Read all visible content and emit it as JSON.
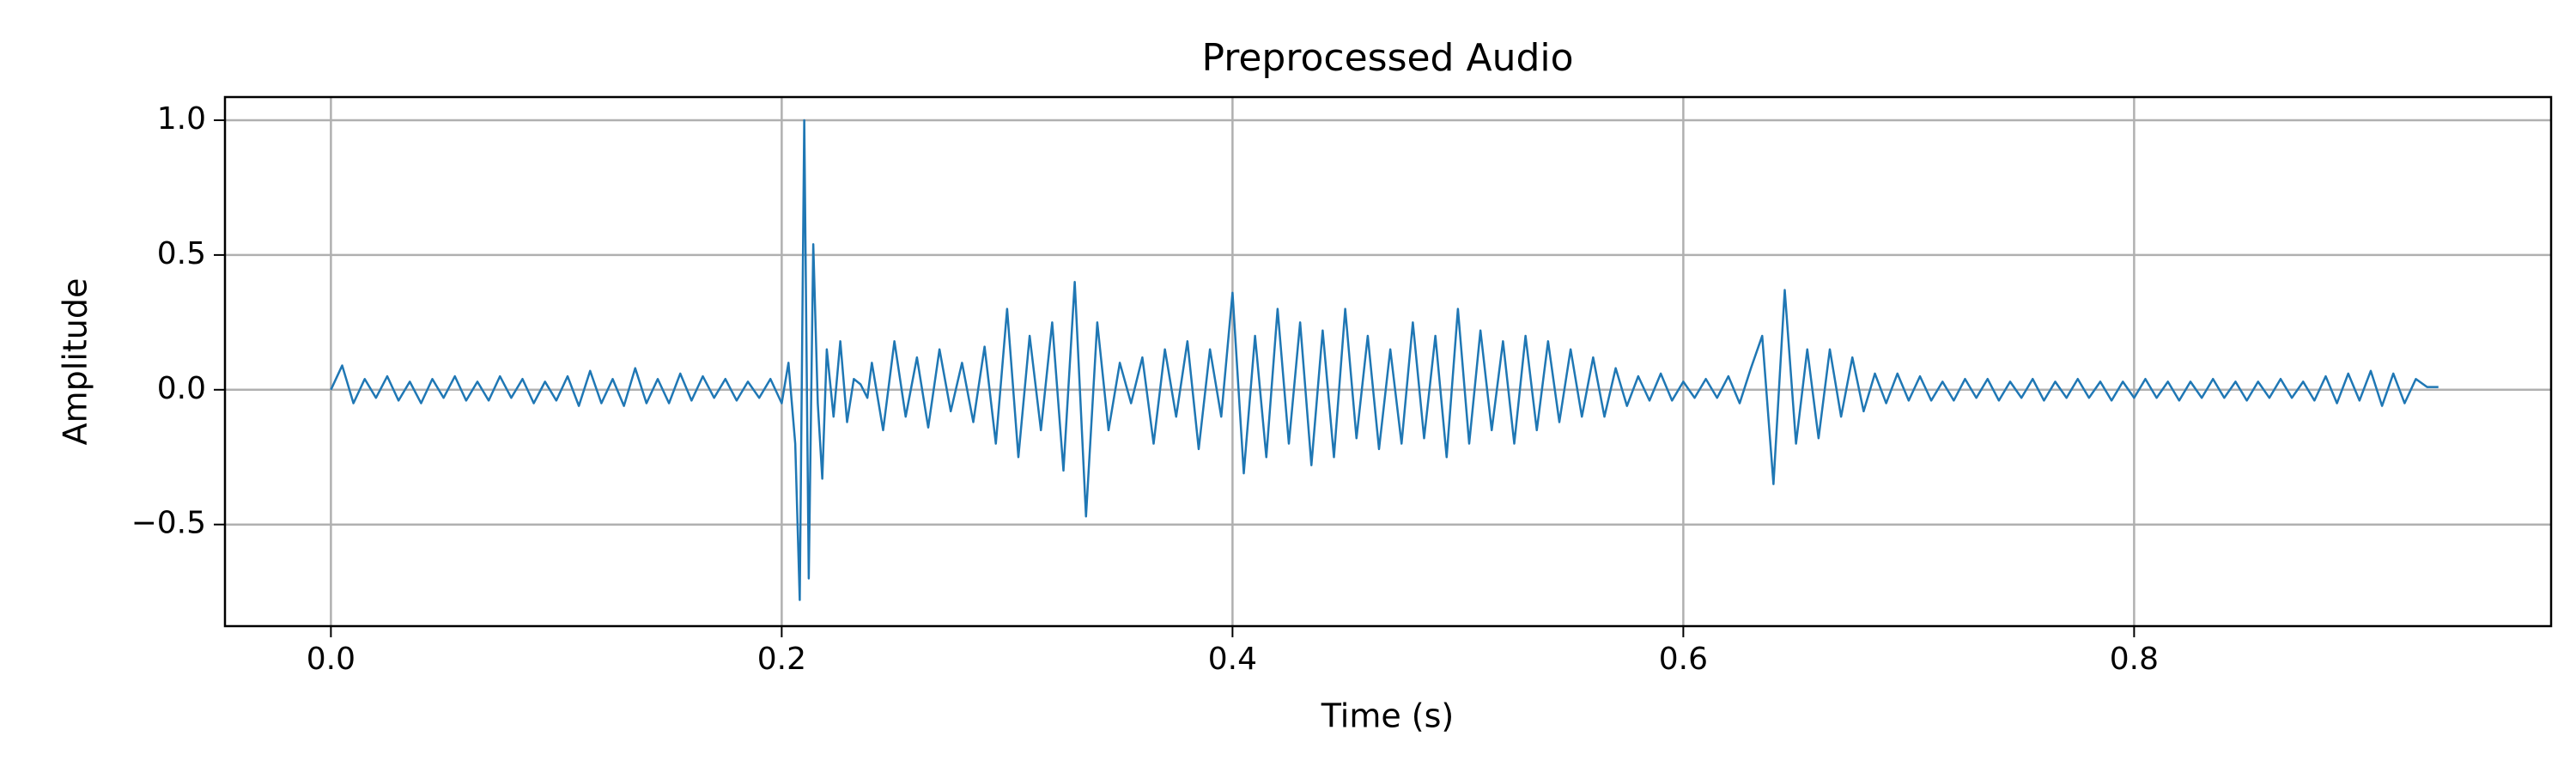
{
  "chart_data": {
    "type": "line",
    "title": "Preprocessed Audio",
    "x_label": "Time (s)",
    "y_label": "Amplitude",
    "color": "#1f77b4",
    "grid": true,
    "xlim": [
      -0.047,
      0.985
    ],
    "ylim": [
      -0.877,
      1.086
    ],
    "xticks": [
      {
        "value": 0,
        "label": "0.0"
      },
      0.2,
      0.4,
      0.6,
      0.8
    ],
    "yticks": [
      {
        "value": -0.5,
        "label": "−0.5"
      },
      {
        "value": 0,
        "label": "0.0"
      },
      0.5,
      {
        "value": 1,
        "label": "1.0"
      }
    ],
    "x": [
      0,
      0.005,
      0.01,
      0.015,
      0.02,
      0.025,
      0.03,
      0.035,
      0.04,
      0.045,
      0.05,
      0.055,
      0.06,
      0.065,
      0.07,
      0.075,
      0.08,
      0.085,
      0.09,
      0.095,
      0.1,
      0.105,
      0.11,
      0.115,
      0.12,
      0.125,
      0.13,
      0.135,
      0.14,
      0.145,
      0.15,
      0.155,
      0.16,
      0.165,
      0.17,
      0.175,
      0.18,
      0.185,
      0.19,
      0.195,
      0.2,
      0.203,
      0.206,
      0.208,
      0.21,
      0.212,
      0.214,
      0.216,
      0.218,
      0.22,
      0.223,
      0.226,
      0.229,
      0.232,
      0.235,
      0.238,
      0.24,
      0.245,
      0.25,
      0.255,
      0.26,
      0.265,
      0.27,
      0.275,
      0.28,
      0.285,
      0.29,
      0.295,
      0.3,
      0.305,
      0.31,
      0.315,
      0.32,
      0.325,
      0.33,
      0.335,
      0.34,
      0.345,
      0.35,
      0.355,
      0.36,
      0.365,
      0.37,
      0.375,
      0.38,
      0.385,
      0.39,
      0.395,
      0.4,
      0.405,
      0.41,
      0.415,
      0.42,
      0.425,
      0.43,
      0.435,
      0.44,
      0.445,
      0.45,
      0.455,
      0.46,
      0.465,
      0.47,
      0.475,
      0.48,
      0.485,
      0.49,
      0.495,
      0.5,
      0.505,
      0.51,
      0.515,
      0.52,
      0.525,
      0.53,
      0.535,
      0.54,
      0.545,
      0.55,
      0.555,
      0.56,
      0.565,
      0.57,
      0.575,
      0.58,
      0.585,
      0.59,
      0.595,
      0.6,
      0.605,
      0.61,
      0.615,
      0.62,
      0.625,
      0.63,
      0.635,
      0.64,
      0.645,
      0.65,
      0.655,
      0.66,
      0.665,
      0.67,
      0.675,
      0.68,
      0.685,
      0.69,
      0.695,
      0.7,
      0.705,
      0.71,
      0.715,
      0.72,
      0.725,
      0.73,
      0.735,
      0.74,
      0.745,
      0.75,
      0.755,
      0.76,
      0.765,
      0.77,
      0.775,
      0.78,
      0.785,
      0.79,
      0.795,
      0.8,
      0.805,
      0.81,
      0.815,
      0.82,
      0.825,
      0.83,
      0.835,
      0.84,
      0.845,
      0.85,
      0.855,
      0.86,
      0.865,
      0.87,
      0.875,
      0.88,
      0.885,
      0.89,
      0.895,
      0.9,
      0.905,
      0.91,
      0.915,
      0.92,
      0.925,
      0.93,
      0.935
    ],
    "values": [
      0,
      0.09,
      -0.05,
      0.04,
      -0.03,
      0.05,
      -0.04,
      0.03,
      -0.05,
      0.04,
      -0.03,
      0.05,
      -0.04,
      0.03,
      -0.04,
      0.05,
      -0.03,
      0.04,
      -0.05,
      0.03,
      -0.04,
      0.05,
      -0.06,
      0.07,
      -0.05,
      0.04,
      -0.06,
      0.08,
      -0.05,
      0.04,
      -0.05,
      0.06,
      -0.04,
      0.05,
      -0.03,
      0.04,
      -0.04,
      0.03,
      -0.03,
      0.04,
      -0.05,
      0.1,
      -0.2,
      -0.78,
      1.0,
      -0.7,
      0.54,
      -0.05,
      -0.33,
      0.15,
      -0.1,
      0.18,
      -0.12,
      0.04,
      0.02,
      -0.03,
      0.1,
      -0.15,
      0.18,
      -0.1,
      0.12,
      -0.14,
      0.15,
      -0.08,
      0.1,
      -0.12,
      0.16,
      -0.2,
      0.3,
      -0.25,
      0.2,
      -0.15,
      0.25,
      -0.3,
      0.4,
      -0.47,
      0.25,
      -0.15,
      0.1,
      -0.05,
      0.12,
      -0.2,
      0.15,
      -0.1,
      0.18,
      -0.22,
      0.15,
      -0.1,
      0.36,
      -0.31,
      0.2,
      -0.25,
      0.3,
      -0.2,
      0.25,
      -0.28,
      0.22,
      -0.25,
      0.3,
      -0.18,
      0.2,
      -0.22,
      0.15,
      -0.2,
      0.25,
      -0.18,
      0.2,
      -0.25,
      0.3,
      -0.2,
      0.22,
      -0.15,
      0.18,
      -0.2,
      0.2,
      -0.15,
      0.18,
      -0.12,
      0.15,
      -0.1,
      0.12,
      -0.1,
      0.08,
      -0.06,
      0.05,
      -0.04,
      0.06,
      -0.04,
      0.03,
      -0.03,
      0.04,
      -0.03,
      0.05,
      -0.05,
      0.08,
      0.2,
      -0.35,
      0.37,
      -0.2,
      0.15,
      -0.18,
      0.15,
      -0.1,
      0.12,
      -0.08,
      0.06,
      -0.05,
      0.06,
      -0.04,
      0.05,
      -0.04,
      0.03,
      -0.04,
      0.04,
      -0.03,
      0.04,
      -0.04,
      0.03,
      -0.03,
      0.04,
      -0.04,
      0.03,
      -0.03,
      0.04,
      -0.03,
      0.03,
      -0.04,
      0.03,
      -0.03,
      0.04,
      -0.03,
      0.03,
      -0.04,
      0.03,
      -0.03,
      0.04,
      -0.03,
      0.03,
      -0.04,
      0.03,
      -0.03,
      0.04,
      -0.03,
      0.03,
      -0.04,
      0.05,
      -0.05,
      0.06,
      -0.04,
      0.07,
      -0.06,
      0.06,
      -0.05,
      0.04,
      0.01,
      0.01
    ]
  }
}
